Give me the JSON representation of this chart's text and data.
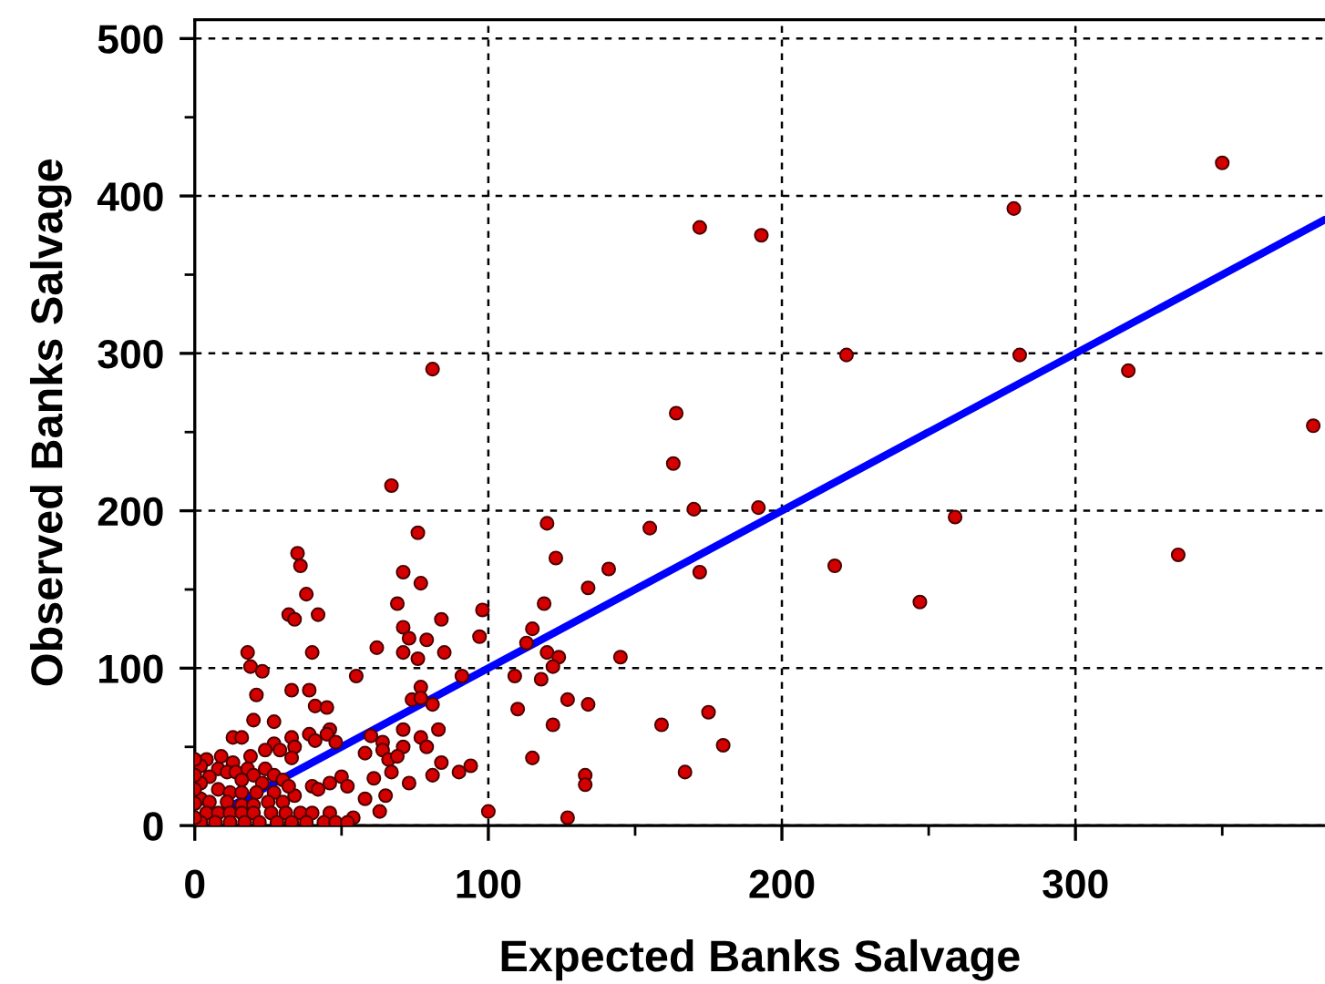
{
  "chart_data": {
    "type": "scatter",
    "xlabel": "Expected Banks Salvage",
    "ylabel": "Observed Banks Salvage",
    "xlim": [
      0,
      385
    ],
    "ylim": [
      0,
      512
    ],
    "xticks": [
      0,
      {
        "value": 50,
        "label": null
      },
      100,
      {
        "value": 150,
        "label": null
      },
      200,
      {
        "value": 250,
        "label": null
      },
      300,
      {
        "value": 350,
        "label": null
      }
    ],
    "yticks": [
      0,
      {
        "value": 50,
        "label": null
      },
      100,
      {
        "value": 150,
        "label": null
      },
      200,
      {
        "value": 250,
        "label": null
      },
      300,
      {
        "value": 350,
        "label": null
      },
      400,
      {
        "value": 450,
        "label": null
      },
      500
    ],
    "grid": true,
    "series": [
      {
        "color": "#d40000",
        "marker": "circle",
        "x": [
          350,
          279,
          281,
          318,
          381,
          259,
          247,
          335,
          222,
          172,
          193,
          218,
          164,
          163,
          170,
          192,
          120,
          155,
          123,
          141,
          172,
          134,
          119,
          115,
          113,
          120,
          124,
          122,
          145,
          109,
          118,
          110,
          127,
          134,
          122,
          159,
          175,
          180,
          115,
          133,
          133,
          167,
          127,
          81,
          67,
          76,
          35,
          36,
          71,
          77,
          38,
          69,
          32,
          34,
          42,
          71,
          73,
          79,
          84,
          98,
          97,
          18,
          19,
          23,
          40,
          62,
          71,
          76,
          85,
          55,
          91,
          21,
          33,
          39,
          41,
          45,
          77,
          81,
          20,
          27,
          46,
          60,
          64,
          71,
          71,
          77,
          83,
          79,
          64,
          66,
          69,
          84,
          90,
          94,
          81,
          67,
          61,
          73,
          63,
          100,
          13,
          16,
          33,
          39,
          41,
          45,
          48,
          27,
          29,
          34,
          24,
          19,
          13,
          9,
          4,
          2,
          8,
          11,
          14,
          18,
          20,
          24,
          27,
          30,
          23,
          16,
          5,
          2,
          8,
          12,
          16,
          21,
          27,
          2,
          5,
          11,
          16,
          20,
          25,
          30,
          34,
          32,
          40,
          42,
          46,
          50,
          52,
          58,
          65,
          58,
          54,
          4,
          8,
          12,
          16,
          20,
          26,
          31,
          36,
          40,
          46,
          2,
          7,
          12,
          17,
          22,
          28,
          33,
          38,
          44,
          48,
          52,
          0,
          0,
          0,
          0,
          0,
          74,
          77,
          33
        ],
        "values": [
          421,
          392,
          299,
          289,
          254,
          196,
          142,
          172,
          299,
          380,
          375,
          165,
          262,
          230,
          201,
          202,
          192,
          189,
          170,
          163,
          161,
          151,
          141,
          125,
          116,
          110,
          107,
          101,
          107,
          95,
          93,
          74,
          80,
          77,
          64,
          64,
          72,
          51,
          43,
          32,
          26,
          34,
          5,
          290,
          216,
          186,
          173,
          165,
          161,
          154,
          147,
          141,
          134,
          131,
          134,
          126,
          119,
          118,
          131,
          137,
          120,
          110,
          101,
          98,
          110,
          113,
          110,
          106,
          110,
          95,
          95,
          83,
          86,
          86,
          76,
          75,
          88,
          77,
          67,
          66,
          61,
          57,
          53,
          61,
          50,
          56,
          61,
          50,
          48,
          42,
          44,
          40,
          34,
          38,
          32,
          34,
          30,
          27,
          9,
          9,
          56,
          56,
          56,
          58,
          54,
          58,
          53,
          52,
          48,
          50,
          48,
          44,
          40,
          44,
          42,
          38,
          36,
          34,
          34,
          36,
          32,
          36,
          32,
          29,
          27,
          29,
          31,
          27,
          23,
          21,
          21,
          21,
          21,
          17,
          15,
          15,
          13,
          13,
          15,
          15,
          19,
          25,
          25,
          23,
          27,
          31,
          25,
          17,
          19,
          46,
          5,
          8,
          8,
          8,
          8,
          8,
          8,
          8,
          8,
          8,
          8,
          2,
          2,
          2,
          2,
          2,
          2,
          2,
          2,
          2,
          2,
          2,
          32,
          23,
          14,
          42,
          5,
          80,
          81,
          43
        ]
      },
      {
        "type": "line",
        "color": "#0000ff",
        "marker": "none",
        "line_style": "solid",
        "x": [
          10,
          385
        ],
        "values": [
          10,
          385
        ]
      }
    ]
  }
}
